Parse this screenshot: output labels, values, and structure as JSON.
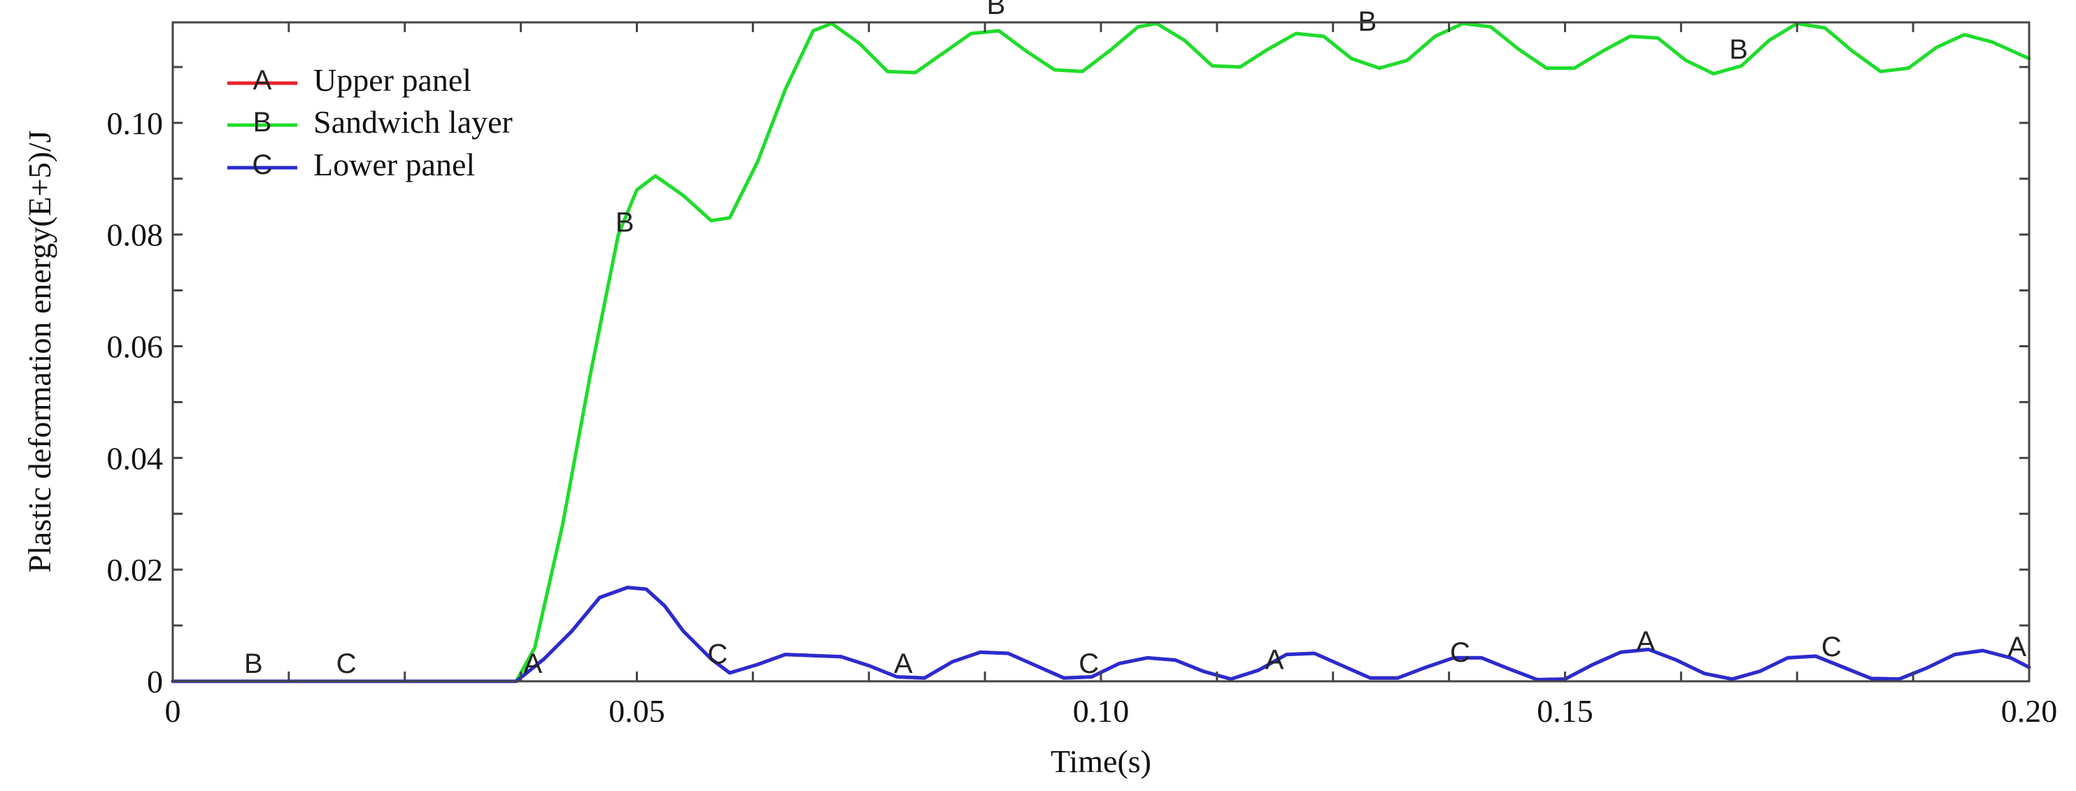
{
  "chart_data": {
    "type": "line",
    "xlabel": "Time(s)",
    "ylabel": "Plastic deformation energy(E+5)/J",
    "xlim": [
      0,
      0.2
    ],
    "ylim": [
      0,
      0.118
    ],
    "x_ticks": [
      0,
      0.05,
      0.1,
      0.15,
      0.2
    ],
    "x_tick_labels": [
      "0",
      "0.05",
      "0.10",
      "0.15",
      "0.20"
    ],
    "y_ticks": [
      0,
      0.02,
      0.04,
      0.06,
      0.08,
      0.1
    ],
    "y_tick_labels": [
      "0",
      "0.02",
      "0.04",
      "0.06",
      "0.08",
      "0.10"
    ],
    "grid": false,
    "legend_position": "top-left",
    "series": [
      {
        "name": "Upper panel",
        "marker": "A",
        "color": "#e8232a",
        "x": [
          0,
          0.037,
          0.04,
          0.043,
          0.046,
          0.049,
          0.051,
          0.053,
          0.055,
          0.058,
          0.06,
          0.063,
          0.066,
          0.069,
          0.072,
          0.075,
          0.078,
          0.081,
          0.084,
          0.087,
          0.09,
          0.093,
          0.096,
          0.099,
          0.102,
          0.105,
          0.108,
          0.111,
          0.114,
          0.117,
          0.12,
          0.123,
          0.126,
          0.129,
          0.132,
          0.135,
          0.138,
          0.141,
          0.144,
          0.147,
          0.15,
          0.153,
          0.156,
          0.159,
          0.162,
          0.165,
          0.168,
          0.171,
          0.174,
          0.177,
          0.18,
          0.183,
          0.186,
          0.189,
          0.192,
          0.195,
          0.198,
          0.2
        ],
        "y": [
          0,
          0,
          0.004,
          0.009,
          0.015,
          0.0168,
          0.0165,
          0.0135,
          0.009,
          0.004,
          0.0015,
          0.003,
          0.0048,
          0.0046,
          0.0044,
          0.0028,
          0.0008,
          0.0006,
          0.0035,
          0.0052,
          0.005,
          0.0028,
          0.0006,
          0.0008,
          0.0032,
          0.0042,
          0.0038,
          0.0018,
          0.0004,
          0.002,
          0.0048,
          0.005,
          0.0028,
          0.0006,
          0.0006,
          0.0025,
          0.0042,
          0.0042,
          0.0022,
          0.0003,
          0.0004,
          0.003,
          0.0052,
          0.0057,
          0.0038,
          0.0014,
          0.0004,
          0.0018,
          0.0042,
          0.0045,
          0.0025,
          0.0005,
          0.0004,
          0.0024,
          0.0048,
          0.0055,
          0.0042,
          0.0025
        ]
      },
      {
        "name": "Sandwich layer",
        "marker": "B",
        "color": "#1fdc2b",
        "x": [
          0,
          0.037,
          0.039,
          0.042,
          0.045,
          0.048,
          0.05,
          0.052,
          0.055,
          0.058,
          0.06,
          0.063,
          0.066,
          0.069,
          0.071,
          0.074,
          0.077,
          0.08,
          0.083,
          0.086,
          0.089,
          0.092,
          0.095,
          0.098,
          0.101,
          0.104,
          0.106,
          0.109,
          0.112,
          0.115,
          0.118,
          0.121,
          0.124,
          0.127,
          0.13,
          0.133,
          0.136,
          0.139,
          0.142,
          0.145,
          0.148,
          0.151,
          0.154,
          0.157,
          0.16,
          0.163,
          0.166,
          0.169,
          0.172,
          0.175,
          0.178,
          0.181,
          0.184,
          0.187,
          0.19,
          0.193,
          0.196,
          0.2
        ],
        "y": [
          0,
          0,
          0.006,
          0.028,
          0.055,
          0.08,
          0.088,
          0.0905,
          0.087,
          0.0825,
          0.083,
          0.093,
          0.106,
          0.1165,
          0.1178,
          0.1142,
          0.1092,
          0.109,
          0.1125,
          0.116,
          0.1165,
          0.1128,
          0.1095,
          0.1092,
          0.113,
          0.1172,
          0.1178,
          0.1148,
          0.1102,
          0.11,
          0.1132,
          0.116,
          0.1155,
          0.1115,
          0.1098,
          0.1112,
          0.1155,
          0.1178,
          0.1172,
          0.1132,
          0.1098,
          0.1098,
          0.1128,
          0.1155,
          0.1152,
          0.1112,
          0.1088,
          0.1102,
          0.1148,
          0.1178,
          0.117,
          0.1128,
          0.1092,
          0.1098,
          0.1135,
          0.1158,
          0.1145,
          0.1115
        ]
      },
      {
        "name": "Lower panel",
        "marker": "C",
        "color": "#2a2ccf",
        "x": [
          0,
          0.037,
          0.04,
          0.043,
          0.046,
          0.049,
          0.051,
          0.053,
          0.055,
          0.058,
          0.06,
          0.063,
          0.066,
          0.069,
          0.072,
          0.075,
          0.078,
          0.081,
          0.084,
          0.087,
          0.09,
          0.093,
          0.096,
          0.099,
          0.102,
          0.105,
          0.108,
          0.111,
          0.114,
          0.117,
          0.12,
          0.123,
          0.126,
          0.129,
          0.132,
          0.135,
          0.138,
          0.141,
          0.144,
          0.147,
          0.15,
          0.153,
          0.156,
          0.159,
          0.162,
          0.165,
          0.168,
          0.171,
          0.174,
          0.177,
          0.18,
          0.183,
          0.186,
          0.189,
          0.192,
          0.195,
          0.198,
          0.2
        ],
        "y": [
          0,
          0,
          0.004,
          0.009,
          0.015,
          0.0168,
          0.0165,
          0.0135,
          0.009,
          0.004,
          0.0015,
          0.003,
          0.0048,
          0.0046,
          0.0044,
          0.0028,
          0.0008,
          0.0006,
          0.0035,
          0.0052,
          0.005,
          0.0028,
          0.0006,
          0.0008,
          0.0032,
          0.0042,
          0.0038,
          0.0018,
          0.0004,
          0.002,
          0.0048,
          0.005,
          0.0028,
          0.0006,
          0.0006,
          0.0025,
          0.0042,
          0.0042,
          0.0022,
          0.0003,
          0.0004,
          0.003,
          0.0052,
          0.0057,
          0.0038,
          0.0014,
          0.0004,
          0.0018,
          0.0042,
          0.0045,
          0.0025,
          0.0005,
          0.0004,
          0.0024,
          0.0048,
          0.0055,
          0.0042,
          0.0025
        ]
      }
    ],
    "point_labels": [
      {
        "text": "B",
        "x": 0.0087,
        "y": 0.0015
      },
      {
        "text": "C",
        "x": 0.0187,
        "y": 0.0015
      },
      {
        "text": "A",
        "x": 0.0388,
        "y": 0.0015
      },
      {
        "text": "B",
        "x": 0.0487,
        "y": 0.0805
      },
      {
        "text": "C",
        "x": 0.0587,
        "y": 0.0032
      },
      {
        "text": "B",
        "x": 0.0887,
        "y": 0.1195
      },
      {
        "text": "A",
        "x": 0.0787,
        "y": 0.0015
      },
      {
        "text": "C",
        "x": 0.0987,
        "y": 0.0015
      },
      {
        "text": "B",
        "x": 0.1287,
        "y": 0.1165
      },
      {
        "text": "A",
        "x": 0.1187,
        "y": 0.0022
      },
      {
        "text": "C",
        "x": 0.1387,
        "y": 0.0035
      },
      {
        "text": "B",
        "x": 0.1687,
        "y": 0.1115
      },
      {
        "text": "A",
        "x": 0.1587,
        "y": 0.0055
      },
      {
        "text": "C",
        "x": 0.1787,
        "y": 0.0045
      },
      {
        "text": "A",
        "x": 0.1987,
        "y": 0.0045
      }
    ]
  }
}
